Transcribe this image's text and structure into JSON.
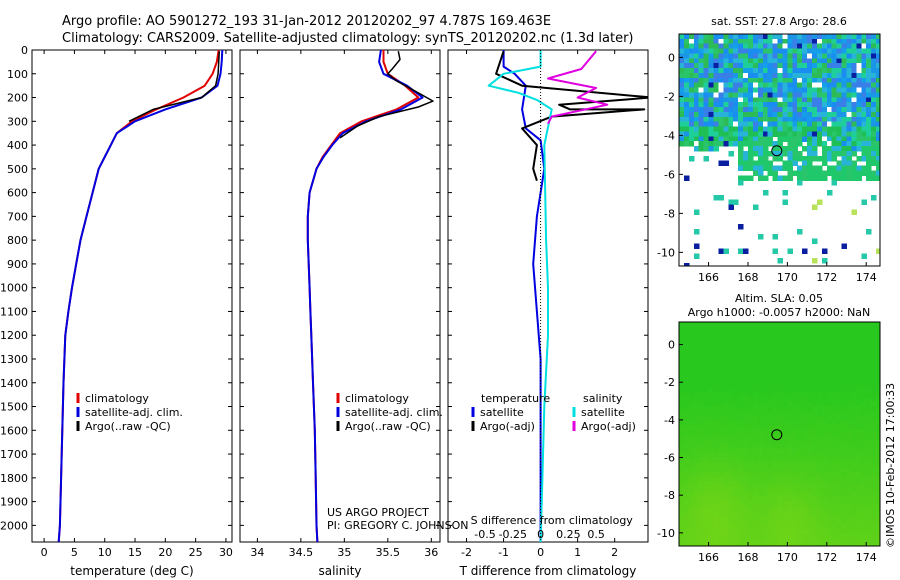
{
  "header": {
    "line1": "Argo profile: AO 5901272_193 31-Jan-2012 20120202_97 4.787S 169.463E",
    "line2": "Climatology: CARS2009. Satellite-adjusted climatology: synTS_20120202.nc (1.3d later)"
  },
  "footer": {
    "project": "US ARGO PROJECT",
    "pi": "PI: GREGORY C. JOHNSON",
    "stamp": "©IMOS 10-Feb-2012 17:00:33"
  },
  "colors": {
    "climatology": "#e00000",
    "satellite": "#0000e0",
    "argo": "#000000",
    "sal_satellite": "#00e0e0",
    "sal_argo": "#e000e0"
  },
  "chart_data": [
    {
      "id": "temperature",
      "type": "line",
      "xlabel": "temperature (deg C)",
      "ylabel": "",
      "xlim": [
        -2,
        31
      ],
      "ylim": [
        2070,
        0
      ],
      "xticks": [
        0,
        5,
        10,
        15,
        20,
        25,
        30
      ],
      "xticklabels": [
        "0",
        "5",
        "10",
        "15",
        "20",
        "25",
        "30"
      ],
      "yticks": [
        0,
        100,
        200,
        300,
        400,
        500,
        600,
        700,
        800,
        900,
        1000,
        1100,
        1200,
        1300,
        1400,
        1500,
        1600,
        1700,
        1800,
        1900,
        2000
      ],
      "legend": [
        "climatology",
        "satellite-adj. clim.",
        "Argo(..raw -QC)"
      ],
      "series": [
        {
          "name": "climatology",
          "color": "#e00000",
          "width": 2,
          "x": [
            28.8,
            28.5,
            27.8,
            26.5,
            23.0,
            18.5,
            14.5,
            12.0,
            11.0,
            10.0,
            9.0,
            8.0,
            7.0,
            6.0,
            5.3,
            4.6,
            4.0,
            3.5,
            3.2,
            3.0,
            2.8,
            2.6,
            2.4
          ],
          "y": [
            0,
            50,
            100,
            150,
            200,
            250,
            300,
            350,
            400,
            450,
            500,
            600,
            700,
            800,
            900,
            1000,
            1100,
            1200,
            1400,
            1600,
            1800,
            2000,
            2070
          ]
        },
        {
          "name": "satellite",
          "color": "#0000e0",
          "width": 2,
          "x": [
            29.4,
            29.3,
            29.1,
            28.6,
            26.0,
            20.0,
            15.0,
            12.0,
            11.0,
            10.0,
            9.0,
            8.0,
            7.0,
            6.0,
            5.3,
            4.6,
            4.0,
            3.5,
            3.2,
            3.0,
            2.8,
            2.6,
            2.4
          ],
          "y": [
            0,
            50,
            100,
            150,
            200,
            250,
            300,
            350,
            400,
            450,
            500,
            600,
            700,
            800,
            900,
            1000,
            1100,
            1200,
            1400,
            1600,
            1800,
            2000,
            2070
          ]
        },
        {
          "name": "argo",
          "color": "#000000",
          "width": 1.5,
          "x": [
            28.9,
            28.8,
            28.7,
            28.3,
            26.0,
            18.0,
            14.0
          ],
          "y": [
            5,
            50,
            100,
            150,
            200,
            250,
            300
          ]
        }
      ]
    },
    {
      "id": "salinity",
      "type": "line",
      "xlabel": "salinity",
      "ylabel": "",
      "xlim": [
        33.8,
        36.1
      ],
      "ylim": [
        2070,
        0
      ],
      "xticks": [
        34,
        34.5,
        35,
        35.5,
        36
      ],
      "xticklabels": [
        "34",
        "34.5",
        "35",
        "35.5",
        "36"
      ],
      "legend": [
        "climatology",
        "satellite-adj. clim.",
        "Argo(..raw -QC)"
      ],
      "series": [
        {
          "name": "climatology",
          "color": "#e00000",
          "width": 2,
          "x": [
            35.45,
            35.45,
            35.5,
            35.7,
            35.85,
            35.6,
            35.2,
            34.95,
            34.85,
            34.75,
            34.68,
            34.6,
            34.58,
            34.58,
            34.59,
            34.6,
            34.61,
            34.62,
            34.64,
            34.66,
            34.67,
            34.68,
            34.69
          ],
          "y": [
            0,
            50,
            100,
            150,
            200,
            250,
            300,
            350,
            400,
            450,
            500,
            600,
            700,
            800,
            900,
            1000,
            1100,
            1200,
            1400,
            1600,
            1800,
            2000,
            2070
          ]
        },
        {
          "name": "satellite",
          "color": "#0000e0",
          "width": 2,
          "x": [
            35.42,
            35.4,
            35.45,
            35.72,
            35.9,
            35.65,
            35.25,
            34.98,
            34.86,
            34.76,
            34.68,
            34.6,
            34.58,
            34.58,
            34.59,
            34.6,
            34.61,
            34.62,
            34.64,
            34.66,
            34.67,
            34.68,
            34.69
          ],
          "y": [
            0,
            50,
            100,
            150,
            200,
            250,
            300,
            350,
            400,
            450,
            500,
            600,
            700,
            800,
            900,
            1000,
            1100,
            1200,
            1400,
            1600,
            1800,
            2000,
            2070
          ]
        },
        {
          "name": "argo",
          "color": "#000000",
          "width": 1.5,
          "x": [
            35.62,
            35.64,
            35.55,
            35.5,
            35.6,
            35.8,
            36.02,
            35.85,
            35.4,
            35.15,
            34.95
          ],
          "y": [
            5,
            40,
            80,
            100,
            130,
            170,
            215,
            240,
            280,
            320,
            370
          ]
        }
      ]
    },
    {
      "id": "difference",
      "type": "line",
      "xlabel": "T difference from climatology",
      "xlabel_top": "S difference from climatology",
      "xlim": [
        -2.5,
        2.9
      ],
      "ylim": [
        2070,
        0
      ],
      "xticks": [
        -2,
        -1,
        0,
        1,
        2
      ],
      "xticklabels": [
        "-2",
        "-1",
        "0",
        "1",
        "2"
      ],
      "sticks": [
        -1.5,
        -0.75,
        0,
        0.75,
        1.5
      ],
      "sticklabels": [
        "-0.5",
        "-0.25",
        "0",
        "0.25",
        "0.5"
      ],
      "legend_temperature_title": "temperature",
      "legend_salinity_title": "salinity",
      "legend": [
        "satellite",
        "Argo(-adj)",
        "satellite",
        "Argo(-adj)"
      ],
      "series": [
        {
          "name": "T satellite",
          "color": "#0000e0",
          "width": 2,
          "x": [
            -1.0,
            -1.0,
            -0.7,
            -0.4,
            -0.5,
            -0.4,
            0.0,
            0.1,
            0.0,
            -0.1,
            -0.2,
            -0.1,
            0.0,
            0.0,
            0.0,
            0.0
          ],
          "y": [
            0,
            70,
            100,
            150,
            250,
            330,
            380,
            500,
            600,
            700,
            900,
            1100,
            1300,
            1500,
            1800,
            2070
          ]
        },
        {
          "name": "T argo",
          "color": "#000000",
          "width": 2,
          "x": [
            -1.0,
            -1.2,
            -0.5,
            3.0,
            0.5,
            0.8,
            2.8,
            0.3,
            -0.5,
            -0.1,
            -0.2,
            -0.1
          ],
          "y": [
            5,
            100,
            150,
            200,
            230,
            250,
            250,
            280,
            330,
            400,
            500,
            550
          ]
        },
        {
          "name": "S satellite",
          "color": "#00e0e0",
          "width": 2,
          "x": [
            0.0,
            0.0,
            -1.0,
            -1.4,
            -0.6,
            -0.1,
            0.3,
            0.1,
            0.15,
            0.2,
            0.2,
            0.1,
            0.05,
            0.0
          ],
          "y": [
            0,
            70,
            100,
            150,
            180,
            210,
            250,
            400,
            800,
            1000,
            1200,
            1500,
            1800,
            2070
          ]
        },
        {
          "name": "S argo",
          "color": "#e000e0",
          "width": 2,
          "x": [
            1.5,
            1.1,
            0.2,
            1.5,
            1.0,
            1.8,
            0.3,
            0.2
          ],
          "y": [
            5,
            80,
            120,
            160,
            200,
            230,
            280,
            310
          ]
        }
      ]
    },
    {
      "id": "sst_map",
      "type": "heatmap",
      "title": "sat. SST: 27.8 Argo: 28.6",
      "xlim": [
        164.5,
        174.7
      ],
      "ylim": [
        -10.7,
        1.2
      ],
      "xticks": [
        166,
        168,
        170,
        172,
        174
      ],
      "xticklabels": [
        "166",
        "168",
        "170",
        "172",
        "174"
      ],
      "yticks": [
        0,
        -2,
        -4,
        -6,
        -8,
        -10
      ],
      "yticklabels": [
        "0",
        "-2",
        "-4",
        "-6",
        "-8",
        "-10"
      ],
      "marker": {
        "lon": 169.463,
        "lat": -4.787
      }
    },
    {
      "id": "sla_map",
      "type": "heatmap",
      "title1": "Altim. SLA: 0.05",
      "title2": "Argo h1000: -0.0057 h2000: NaN",
      "xlim": [
        164.5,
        174.7
      ],
      "ylim": [
        -10.7,
        1.2
      ],
      "xticks": [
        166,
        168,
        170,
        172,
        174
      ],
      "xticklabels": [
        "166",
        "168",
        "170",
        "172",
        "174"
      ],
      "yticks": [
        0,
        -2,
        -4,
        -6,
        -8,
        -10
      ],
      "yticklabels": [
        "0",
        "-2",
        "-4",
        "-6",
        "-8",
        "-10"
      ],
      "marker": {
        "lon": 169.463,
        "lat": -4.787
      }
    }
  ]
}
